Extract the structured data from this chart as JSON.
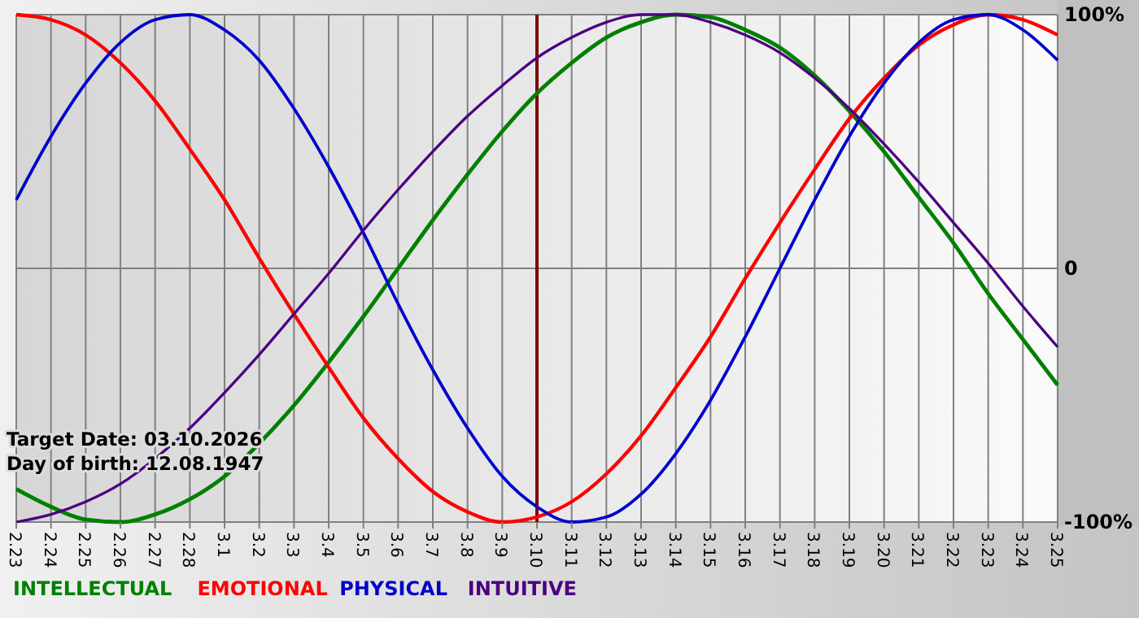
{
  "chart_data": {
    "type": "line",
    "categories": [
      "2.23",
      "2.24",
      "2.25",
      "2.26",
      "2.27",
      "2.28",
      "3.1",
      "3.2",
      "3.3",
      "3.4",
      "3.5",
      "3.6",
      "3.7",
      "3.8",
      "3.9",
      "3.10",
      "3.11",
      "3.12",
      "3.13",
      "3.14",
      "3.15",
      "3.16",
      "3.17",
      "3.18",
      "3.19",
      "3.20",
      "3.21",
      "3.22",
      "3.23",
      "3.24",
      "3.25"
    ],
    "series": [
      {
        "name": "INTELLECTUAL",
        "color": "#008000",
        "values": [
          -87,
          -94,
          -99,
          -100,
          -97,
          -91,
          -82,
          -69,
          -54,
          -37,
          -19,
          0,
          19,
          37,
          54,
          69,
          81,
          91,
          97,
          100,
          99,
          94,
          87,
          76,
          62,
          46,
          28,
          10,
          -10,
          -28,
          -46
        ]
      },
      {
        "name": "EMOTIONAL",
        "color": "#ff0000",
        "values": [
          100,
          98,
          92,
          81,
          66,
          47,
          27,
          4,
          -18,
          -39,
          -59,
          -75,
          -88,
          -96,
          -100,
          -98,
          -92,
          -81,
          -66,
          -47,
          -27,
          -4,
          18,
          39,
          59,
          75,
          88,
          96,
          100,
          98,
          92
        ]
      },
      {
        "name": "PHYSICAL",
        "color": "#0000cc",
        "values": [
          27,
          52,
          73,
          89,
          98,
          100,
          94,
          82,
          63,
          40,
          14,
          -14,
          -40,
          -63,
          -82,
          -94,
          -100,
          -98,
          -89,
          -73,
          -52,
          -27,
          0,
          27,
          52,
          73,
          89,
          98,
          100,
          94,
          82
        ]
      },
      {
        "name": "INTUITIVE",
        "color": "#4b0082",
        "values": [
          -100,
          -97,
          -92,
          -85,
          -75,
          -63,
          -49,
          -34,
          -18,
          -2,
          15,
          31,
          46,
          60,
          72,
          83,
          91,
          97,
          100,
          100,
          97,
          92,
          85,
          75,
          63,
          49,
          34,
          18,
          2,
          -15,
          -31
        ]
      }
    ],
    "ylim": [
      -100,
      100
    ],
    "yticks": [
      {
        "value": 100,
        "label": "100%"
      },
      0,
      {
        "value": -100,
        "label": "-100%"
      }
    ],
    "grid": true,
    "legend": "bottom",
    "ref_lines": [
      {
        "axis": "x",
        "value": "3.10",
        "color": "#800000"
      }
    ],
    "annotations": [
      "Target Date: 03.10.2026",
      "Day of birth: 12.08.1947"
    ]
  }
}
